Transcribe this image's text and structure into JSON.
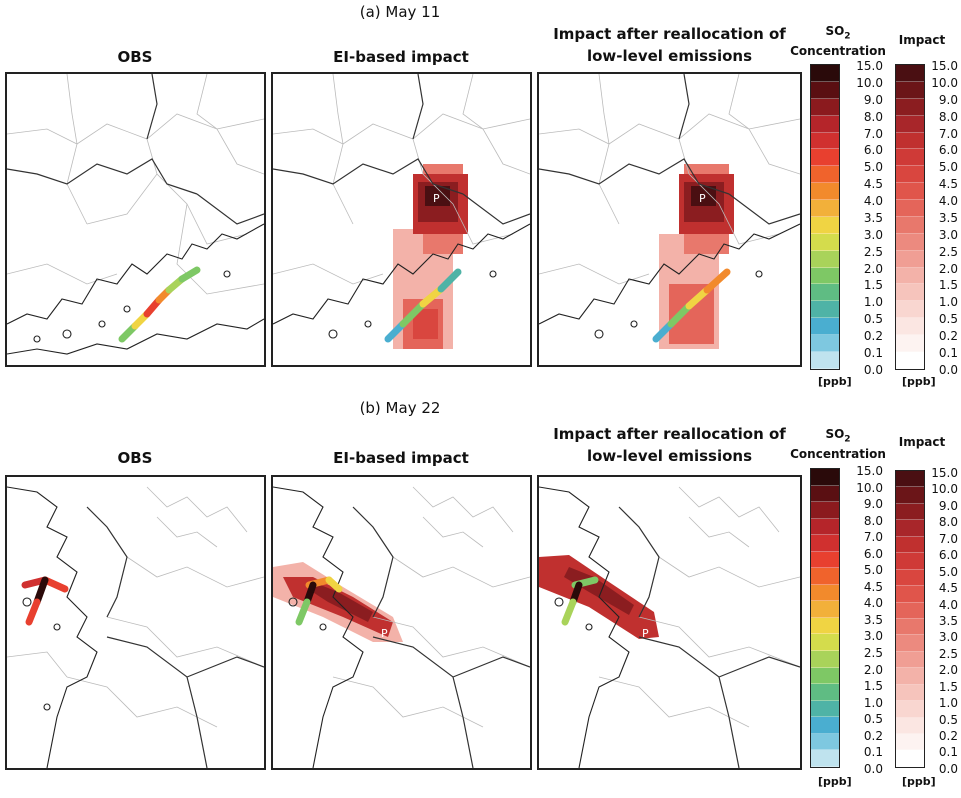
{
  "rows": [
    {
      "label": "(a) May 11",
      "panels": [
        {
          "title_lines": [
            "OBS"
          ]
        },
        {
          "title_lines": [
            "EI-based impact"
          ],
          "marker": "P"
        },
        {
          "title_lines": [
            "Impact after reallocation of",
            "low-level emissions"
          ],
          "marker": "P"
        }
      ]
    },
    {
      "label": "(b) May 22",
      "panels": [
        {
          "title_lines": [
            "OBS"
          ]
        },
        {
          "title_lines": [
            "EI-based impact"
          ],
          "marker": "P"
        },
        {
          "title_lines": [
            "Impact after reallocation of",
            "low-level emissions"
          ],
          "marker": "P"
        }
      ]
    }
  ],
  "colorbars": {
    "concentration": {
      "title_prefix": "SO",
      "title_sub": "2",
      "title_line2": "Concentration",
      "unit": "[ppb]",
      "labels": [
        "15.0",
        "10.0",
        "9.0",
        "8.0",
        "7.0",
        "6.0",
        "5.0",
        "4.5",
        "4.0",
        "3.5",
        "3.0",
        "2.5",
        "2.0",
        "1.5",
        "1.0",
        "0.5",
        "0.2",
        "0.1",
        "0.0"
      ],
      "colors": [
        "#2a0a0a",
        "#5a0f12",
        "#8b1a1e",
        "#b5252a",
        "#d0302f",
        "#e8402f",
        "#f0632c",
        "#f28a2c",
        "#f2b03a",
        "#f0d443",
        "#d4dc4c",
        "#a9d35a",
        "#7ec865",
        "#5fbc83",
        "#4fb3a6",
        "#4aaed0",
        "#7ec8e0",
        "#bfe3ee"
      ]
    },
    "impact": {
      "title": "Impact",
      "unit": "[ppb]",
      "labels": [
        "15.0",
        "10.0",
        "9.0",
        "8.0",
        "7.0",
        "6.0",
        "5.0",
        "4.5",
        "4.0",
        "3.5",
        "3.0",
        "2.5",
        "2.0",
        "1.5",
        "1.0",
        "0.5",
        "0.2",
        "0.1",
        "0.0"
      ],
      "colors": [
        "#4a0f12",
        "#6b1518",
        "#8b1d20",
        "#a8262a",
        "#c0302f",
        "#cf3a37",
        "#d9463f",
        "#e0554b",
        "#e4655a",
        "#e8786c",
        "#ec8a7f",
        "#f09e94",
        "#f3b2a9",
        "#f6c4bc",
        "#f9d6d0",
        "#fbe6e2",
        "#fdf3f1",
        "#ffffff"
      ]
    }
  }
}
